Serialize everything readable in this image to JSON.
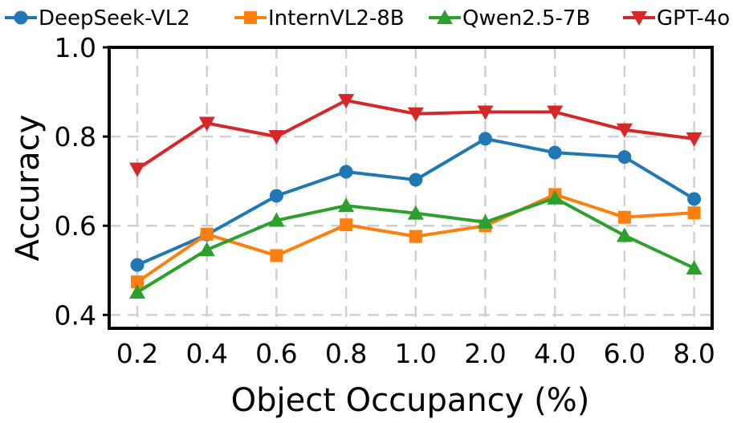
{
  "chart_data": {
    "type": "line",
    "title": "",
    "xlabel": "Object Occupancy (%)",
    "ylabel": "Accuracy",
    "categories": [
      "0.2",
      "0.4",
      "0.6",
      "0.8",
      "1.0",
      "2.0",
      "4.0",
      "6.0",
      "8.0"
    ],
    "ylim": [
      0.37,
      1.0
    ],
    "yticks": [
      "0.4",
      "0.6",
      "0.8",
      "1.0"
    ],
    "grid": true,
    "legend_position": "top",
    "series": [
      {
        "name": "DeepSeek-VL2",
        "color": "#1f77b4",
        "marker": "circle",
        "values": [
          0.512,
          0.58,
          0.667,
          0.721,
          0.703,
          0.795,
          0.764,
          0.754,
          0.66
        ]
      },
      {
        "name": "InternVL2-8B",
        "color": "#ff7f0e",
        "marker": "square",
        "values": [
          0.474,
          0.581,
          0.533,
          0.602,
          0.576,
          0.6,
          0.67,
          0.619,
          0.629
        ]
      },
      {
        "name": "Qwen2.5-7B",
        "color": "#2ca02c",
        "marker": "triangle-up",
        "values": [
          0.451,
          0.546,
          0.612,
          0.645,
          0.628,
          0.608,
          0.662,
          0.578,
          0.505
        ]
      },
      {
        "name": "GPT-4o",
        "color": "#d62728",
        "marker": "triangle-down",
        "values": [
          0.727,
          0.83,
          0.8,
          0.881,
          0.851,
          0.855,
          0.855,
          0.815,
          0.795
        ]
      }
    ]
  }
}
